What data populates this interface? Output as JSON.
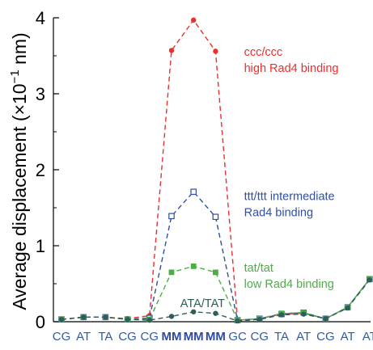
{
  "chart_data": {
    "type": "line",
    "title": "",
    "xlabel": "",
    "ylabel_parts": [
      "Average displacement (",
      "×",
      "10",
      "−1",
      " nm)"
    ],
    "ylim": [
      0,
      4
    ],
    "yticks": [
      "0",
      "1",
      "2",
      "3",
      "4"
    ],
    "grid": false,
    "categories": [
      "CG",
      "AT",
      "TA",
      "CG",
      "CG",
      "MM",
      "MM",
      "MM",
      "GC",
      "CG",
      "TA",
      "AT",
      "CG",
      "AT",
      "AT"
    ],
    "bold_categories": [
      5,
      6,
      7
    ],
    "series": [
      {
        "color": "#e8312f",
        "marker": "circle-filled",
        "values": [
          0.03,
          0.06,
          0.06,
          0.04,
          0.08,
          3.57,
          3.97,
          3.56,
          0.02,
          0.04,
          0.1,
          0.11,
          0.04,
          0.19,
          0.56
        ]
      },
      {
        "color": "#2f4fa3",
        "marker": "square-open",
        "values": [
          0.03,
          0.06,
          0.06,
          0.03,
          0.05,
          1.39,
          1.71,
          1.38,
          0.02,
          0.04,
          0.1,
          0.12,
          0.04,
          0.19,
          0.56
        ]
      },
      {
        "color": "#4caf45",
        "marker": "square-filled",
        "values": [
          0.03,
          0.06,
          0.06,
          0.03,
          0.03,
          0.65,
          0.73,
          0.65,
          0.02,
          0.04,
          0.11,
          0.12,
          0.04,
          0.19,
          0.56
        ]
      },
      {
        "color": "#2f5e58",
        "marker": "circle-filled",
        "values": [
          0.03,
          0.06,
          0.06,
          0.03,
          0.02,
          0.07,
          0.13,
          0.11,
          0.01,
          0.03,
          0.09,
          0.1,
          0.04,
          0.18,
          0.55
        ]
      }
    ],
    "annotations": [
      {
        "lines": [
          "ccc/ccc",
          "high Rad4 binding"
        ],
        "color": "#e8312f",
        "at_category": 8,
        "at_value": 3.5
      },
      {
        "lines": [
          "ttt/ttt intermediate",
          "Rad4 binding"
        ],
        "color": "#2f4fa3",
        "at_category": 8,
        "at_value": 1.6
      },
      {
        "lines": [
          "tat/tat",
          "low Rad4 binding"
        ],
        "color": "#4caf45",
        "at_category": 8,
        "at_value": 0.66
      },
      {
        "lines": [
          "ATA/TAT"
        ],
        "color": "#2f5e58",
        "at_category": 5.1,
        "at_value": 0.19
      }
    ]
  }
}
